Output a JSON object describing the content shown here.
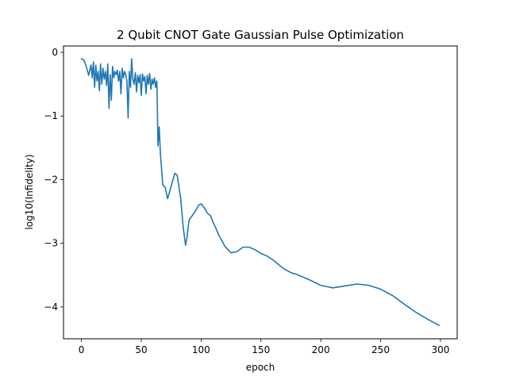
{
  "chart_data": {
    "type": "line",
    "title": "2 Qubit CNOT Gate Gaussian Pulse Optimization",
    "xlabel": "epoch",
    "ylabel": "log10(Infidelity)",
    "xlim": [
      -15,
      314
    ],
    "ylim": [
      -4.5,
      0.1
    ],
    "xticks": [
      0,
      50,
      100,
      150,
      200,
      250,
      300
    ],
    "yticks": [
      0,
      -1,
      -2,
      -3,
      -4
    ],
    "grid": false,
    "line_color": "#1f77b4",
    "series": [
      {
        "x": [
          0,
          2,
          4,
          6,
          8,
          9,
          10,
          11,
          12,
          13,
          14,
          15,
          16,
          17,
          18,
          19,
          20,
          21,
          22,
          23,
          24,
          25,
          26,
          27,
          28,
          29,
          30,
          31,
          32,
          33,
          34,
          35,
          36,
          37,
          38,
          39,
          40,
          41,
          42,
          43,
          44,
          45,
          46,
          47,
          48,
          49,
          50,
          51,
          52,
          53,
          54,
          55,
          56,
          57,
          58,
          59,
          60,
          61,
          62,
          63,
          64,
          65,
          66,
          68,
          70,
          72,
          75,
          78,
          80,
          83,
          85,
          87,
          88,
          90,
          92,
          95,
          98,
          100,
          103,
          105,
          108,
          110,
          112,
          115,
          120,
          125,
          130,
          135,
          140,
          145,
          150,
          155,
          160,
          165,
          170,
          175,
          180,
          190,
          200,
          210,
          220,
          230,
          240,
          250,
          260,
          270,
          280,
          290,
          299
        ],
        "y": [
          -0.1,
          -0.12,
          -0.22,
          -0.36,
          -0.2,
          -0.4,
          -0.15,
          -0.55,
          -0.2,
          -0.45,
          -0.3,
          -0.6,
          -0.18,
          -0.5,
          -0.25,
          -0.42,
          -0.3,
          -0.52,
          -0.18,
          -0.88,
          -0.35,
          -0.75,
          -0.22,
          -0.4,
          -0.3,
          -0.35,
          -0.28,
          -0.45,
          -0.3,
          -0.65,
          -0.25,
          -0.4,
          -0.3,
          -0.35,
          -0.45,
          -1.03,
          -0.3,
          -0.55,
          -0.1,
          -0.42,
          -0.5,
          -0.32,
          -0.62,
          -0.36,
          -0.48,
          -0.35,
          -0.68,
          -0.34,
          -0.45,
          -0.38,
          -0.65,
          -0.36,
          -0.5,
          -0.33,
          -0.58,
          -0.42,
          -0.5,
          -0.4,
          -0.55,
          -0.45,
          -1.47,
          -1.17,
          -1.6,
          -2.08,
          -2.12,
          -2.3,
          -2.1,
          -1.9,
          -1.93,
          -2.3,
          -2.75,
          -3.03,
          -2.93,
          -2.63,
          -2.58,
          -2.5,
          -2.4,
          -2.38,
          -2.45,
          -2.52,
          -2.57,
          -2.67,
          -2.75,
          -2.88,
          -3.05,
          -3.15,
          -3.13,
          -3.06,
          -3.06,
          -3.1,
          -3.16,
          -3.2,
          -3.26,
          -3.34,
          -3.41,
          -3.46,
          -3.49,
          -3.57,
          -3.66,
          -3.7,
          -3.67,
          -3.64,
          -3.66,
          -3.72,
          -3.82,
          -3.96,
          -4.09,
          -4.2,
          -4.29
        ]
      }
    ]
  }
}
